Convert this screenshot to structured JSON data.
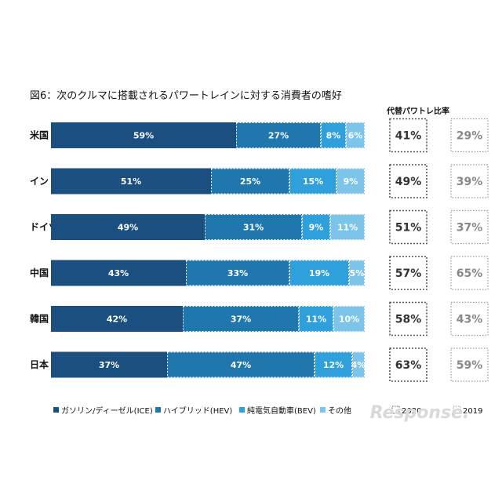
{
  "chart_data": {
    "type": "bar",
    "orientation": "horizontal",
    "stacked": true,
    "title": "図6：次のクルマに搭載されるパワートレインに対する消費者の嗜好",
    "categories": [
      "米国",
      "インド",
      "ドイツ",
      "中国",
      "韓国",
      "日本"
    ],
    "series": [
      {
        "name": "ガソリン/ディーゼル(ICE)",
        "color": "#1a4f80",
        "values": [
          59,
          51,
          49,
          43,
          42,
          37
        ]
      },
      {
        "name": "ハイブリッド(HEV)",
        "color": "#1f77ad",
        "values": [
          27,
          25,
          31,
          33,
          37,
          47
        ]
      },
      {
        "name": "純電気自動車(BEV)",
        "color": "#2fa0dc",
        "values": [
          8,
          15,
          9,
          19,
          11,
          12
        ]
      },
      {
        "name": "その他",
        "color": "#7cc4ea",
        "values": [
          6,
          9,
          11,
          5,
          10,
          4
        ]
      }
    ],
    "xlim": [
      0,
      100
    ],
    "alt_header": "代替パワトレ比率",
    "alt_ratio": {
      "2020": [
        41,
        49,
        51,
        57,
        58,
        63
      ],
      "2019": [
        29,
        39,
        37,
        65,
        43,
        59
      ]
    },
    "box_legend": [
      "2020",
      "2019"
    ]
  },
  "watermark": "Response."
}
